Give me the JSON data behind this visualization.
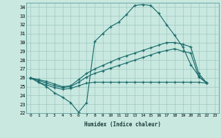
{
  "xlabel": "Humidex (Indice chaleur)",
  "xlim": [
    -0.5,
    23.5
  ],
  "ylim": [
    22,
    34.5
  ],
  "yticks": [
    22,
    23,
    24,
    25,
    26,
    27,
    28,
    29,
    30,
    31,
    32,
    33,
    34
  ],
  "xticks": [
    0,
    1,
    2,
    3,
    4,
    5,
    6,
    7,
    8,
    9,
    10,
    11,
    12,
    13,
    14,
    15,
    16,
    17,
    18,
    19,
    20,
    21,
    22,
    23
  ],
  "bg_color": "#c8e8e0",
  "grid_color": "#a0c8c0",
  "line_color": "#1a6b6b",
  "line1_x": [
    0,
    1,
    2,
    3,
    4,
    5,
    6,
    7,
    8,
    9,
    10,
    11,
    12,
    13,
    14,
    15,
    16,
    17,
    18,
    19,
    20,
    21,
    22
  ],
  "line1_y": [
    26.0,
    25.5,
    25.0,
    24.3,
    23.8,
    23.2,
    22.1,
    23.2,
    30.1,
    31.0,
    31.8,
    32.3,
    33.2,
    34.2,
    34.3,
    34.2,
    33.3,
    32.0,
    30.8,
    29.5,
    27.5,
    26.2,
    25.4
  ],
  "line2_x": [
    0,
    1,
    2,
    3,
    4,
    5,
    6,
    7,
    8,
    9,
    10,
    11,
    12,
    13,
    14,
    15,
    16,
    17,
    18,
    19,
    20,
    21,
    22
  ],
  "line2_y": [
    26.0,
    25.8,
    25.6,
    25.3,
    25.0,
    25.1,
    25.8,
    26.5,
    27.0,
    27.4,
    27.8,
    28.2,
    28.5,
    28.8,
    29.1,
    29.4,
    29.7,
    30.0,
    30.0,
    29.8,
    29.5,
    26.5,
    25.4
  ],
  "line3_x": [
    0,
    1,
    2,
    3,
    4,
    5,
    6,
    7,
    8,
    9,
    10,
    11,
    12,
    13,
    14,
    15,
    16,
    17,
    18,
    19,
    20,
    21,
    22
  ],
  "line3_y": [
    26.0,
    25.7,
    25.4,
    25.1,
    24.9,
    25.0,
    25.5,
    26.1,
    26.5,
    26.8,
    27.1,
    27.4,
    27.7,
    28.0,
    28.3,
    28.6,
    28.9,
    29.1,
    29.3,
    29.0,
    28.8,
    26.1,
    25.4
  ],
  "line4_x": [
    0,
    1,
    2,
    3,
    4,
    5,
    6,
    7,
    8,
    9,
    10,
    11,
    12,
    13,
    14,
    15,
    16,
    17,
    18,
    19,
    20,
    21,
    22
  ],
  "line4_y": [
    26.0,
    25.5,
    25.2,
    24.9,
    24.7,
    24.8,
    25.1,
    25.4,
    25.5,
    25.5,
    25.5,
    25.5,
    25.5,
    25.5,
    25.5,
    25.5,
    25.5,
    25.5,
    25.5,
    25.5,
    25.5,
    25.5,
    25.4
  ]
}
